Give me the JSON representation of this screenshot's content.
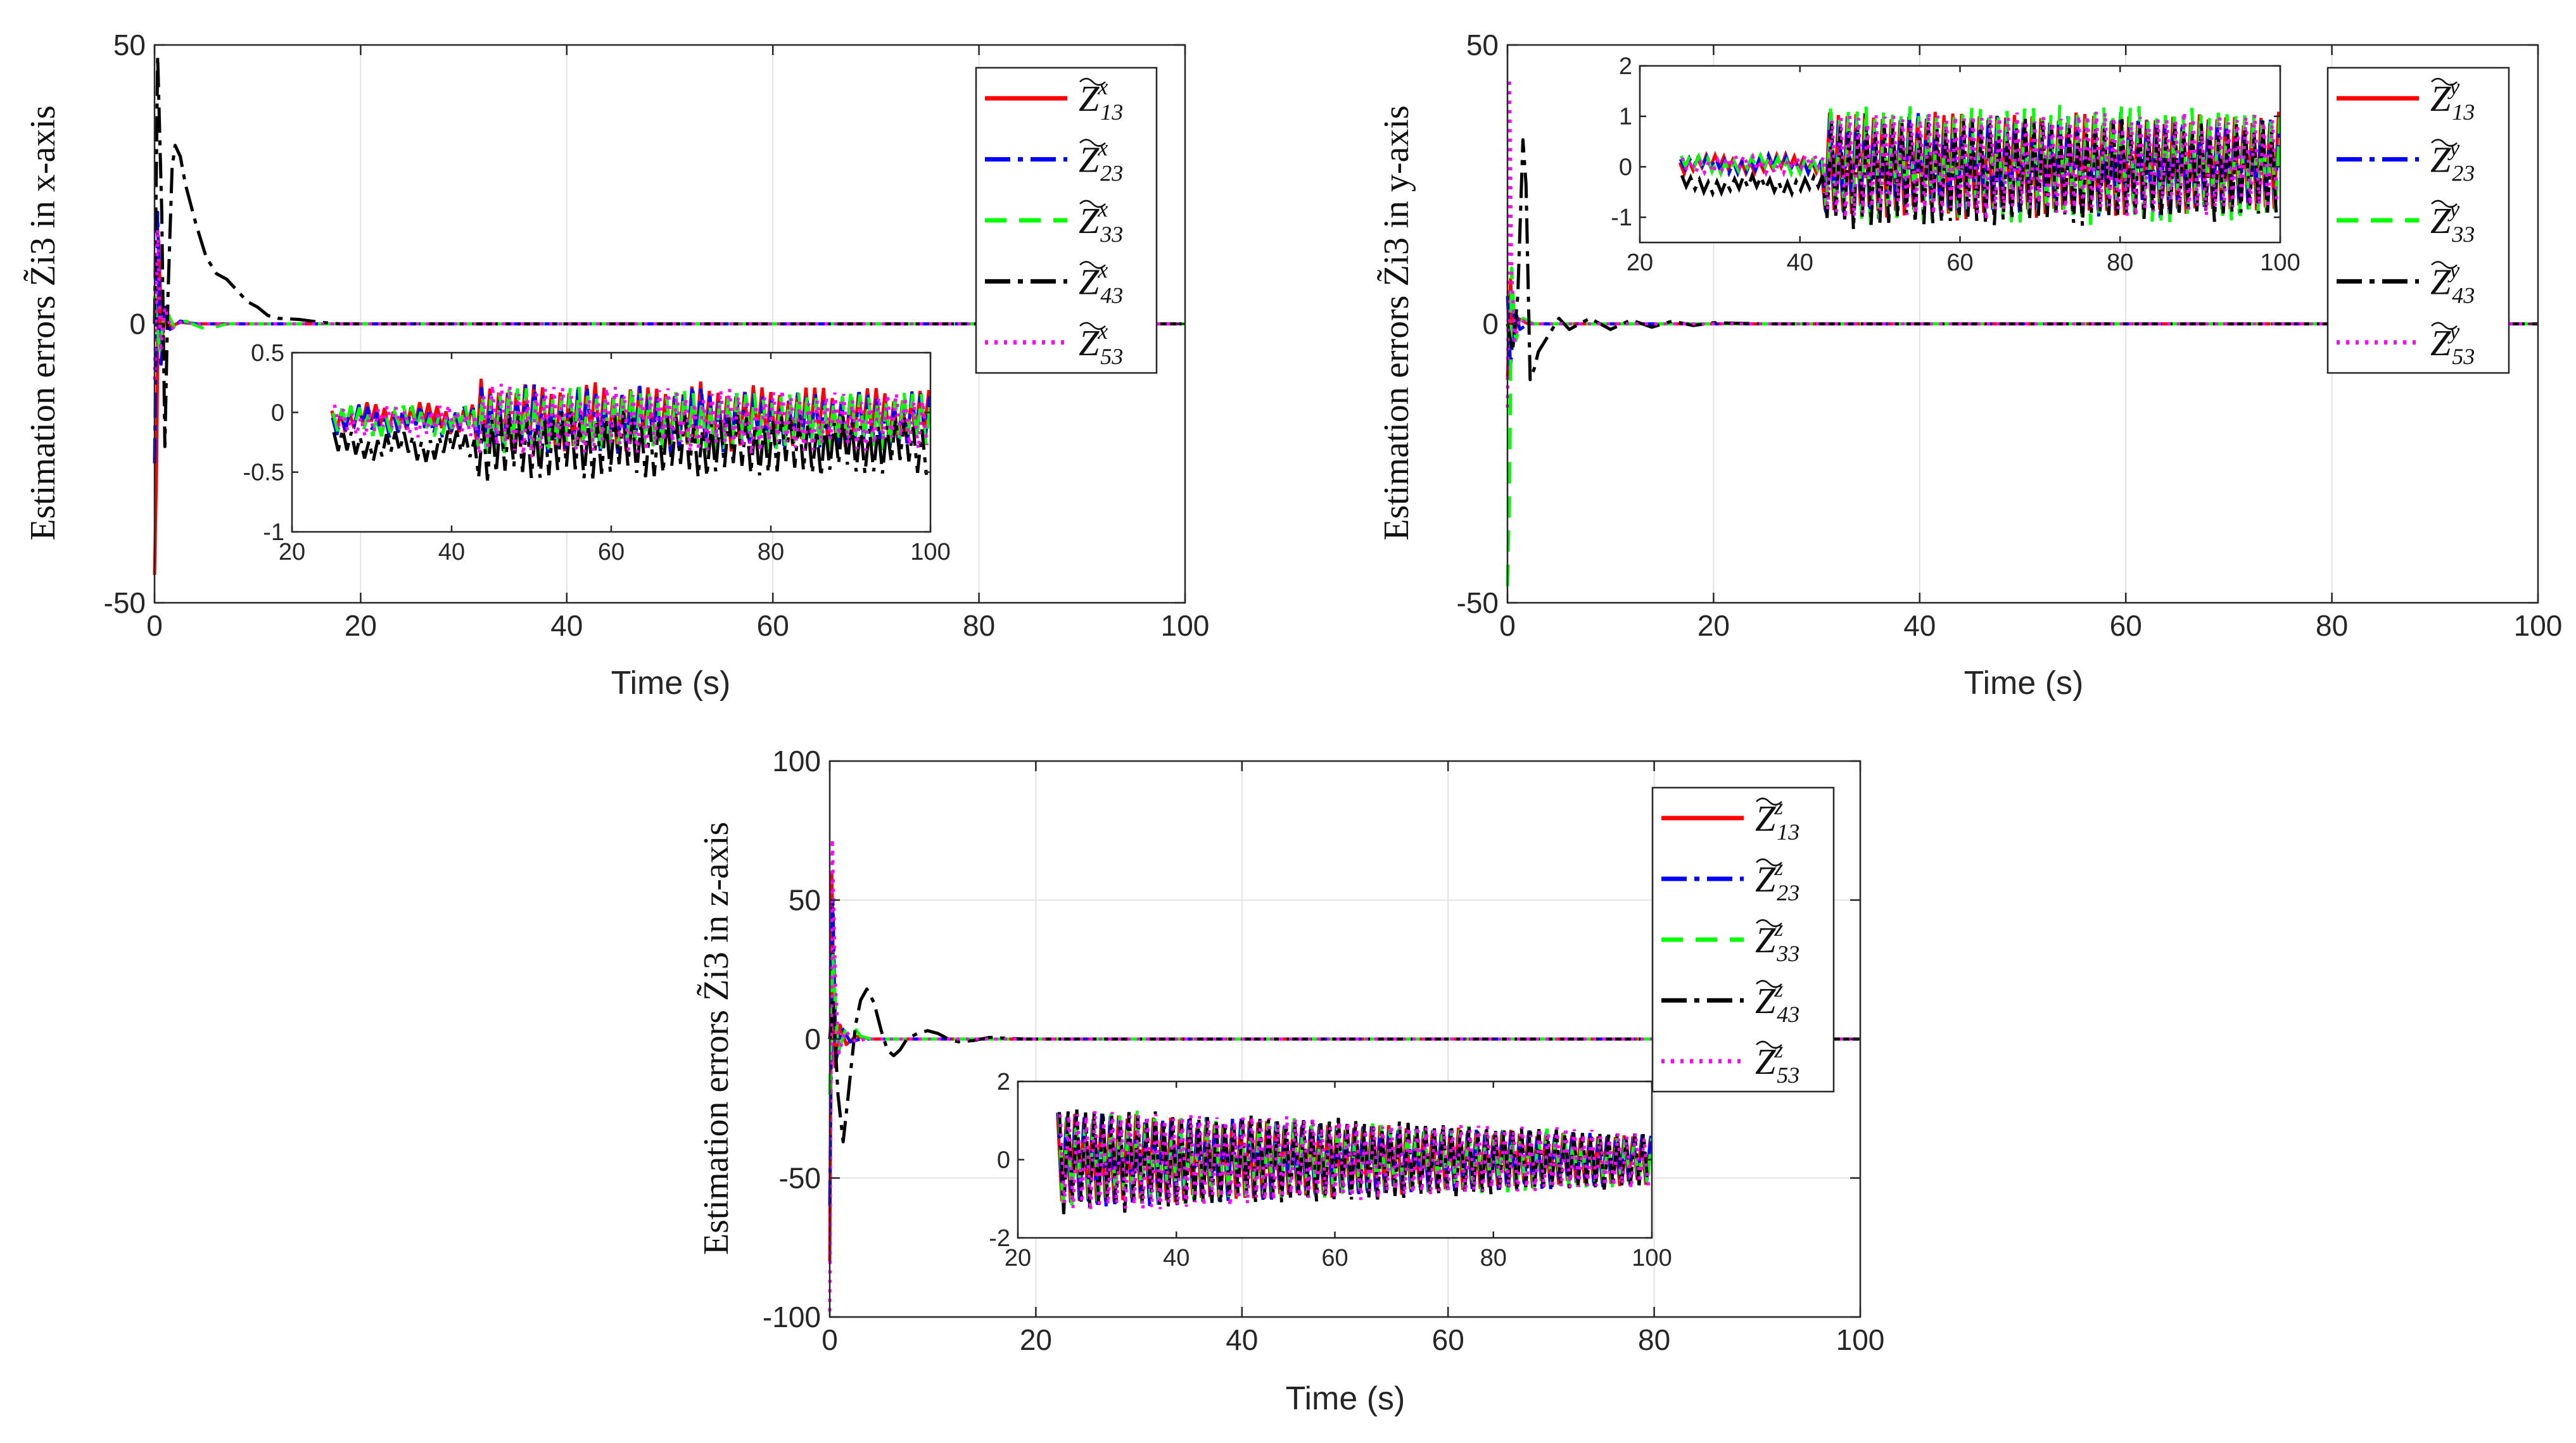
{
  "chart_data": [
    {
      "id": "x",
      "type": "line",
      "xlabel": "Time (s)",
      "ylabel": "Estimation errors Z̃i3 in x-axis",
      "axis_letter": "x",
      "xlim": [
        0,
        100
      ],
      "ylim": [
        -50,
        50
      ],
      "xticks": [
        0,
        20,
        40,
        60,
        80,
        100
      ],
      "yticks": [
        -50,
        0,
        50
      ],
      "grid": true,
      "legend": {
        "placement": "top-right",
        "entries": [
          "Z̃13^x",
          "Z̃23^x",
          "Z̃33^x",
          "Z̃43^x",
          "Z̃53^x"
        ]
      },
      "series": [
        {
          "name": "Z̃13^x",
          "color": "#ff0000",
          "dash": "solid",
          "points": [
            [
              0,
              -45
            ],
            [
              0.2,
              -25
            ],
            [
              0.4,
              15
            ],
            [
              0.7,
              -3
            ],
            [
              1,
              1
            ],
            [
              1.5,
              -0.5
            ],
            [
              2.5,
              0.3
            ],
            [
              4,
              0
            ],
            [
              20,
              0
            ],
            [
              100,
              0
            ]
          ]
        },
        {
          "name": "Z̃23^x",
          "color": "#0000ff",
          "dash": "dashdot",
          "points": [
            [
              0,
              -25
            ],
            [
              0.3,
              20
            ],
            [
              0.6,
              -8
            ],
            [
              1,
              3
            ],
            [
              1.5,
              -1
            ],
            [
              2.5,
              0.5
            ],
            [
              4,
              0
            ],
            [
              20,
              0
            ],
            [
              100,
              0
            ]
          ]
        },
        {
          "name": "Z̃33^x",
          "color": "#00ff00",
          "dash": "dash",
          "points": [
            [
              0,
              5
            ],
            [
              0.5,
              -5
            ],
            [
              1,
              3
            ],
            [
              2,
              -1
            ],
            [
              3,
              0.5
            ],
            [
              5,
              -1
            ],
            [
              7,
              0
            ],
            [
              20,
              0
            ],
            [
              100,
              0
            ]
          ]
        },
        {
          "name": "Z̃43^x",
          "color": "#000000",
          "dash": "dashdot",
          "points": [
            [
              0,
              0
            ],
            [
              0.3,
              48
            ],
            [
              0.7,
              20
            ],
            [
              1,
              -22
            ],
            [
              1.3,
              5
            ],
            [
              1.7,
              28
            ],
            [
              2,
              32
            ],
            [
              2.5,
              30
            ],
            [
              3,
              25
            ],
            [
              4,
              18
            ],
            [
              5,
              12
            ],
            [
              6,
              9
            ],
            [
              7,
              8
            ],
            [
              8,
              6
            ],
            [
              9,
              4
            ],
            [
              10,
              3
            ],
            [
              11,
              1.5
            ],
            [
              12,
              1
            ],
            [
              14,
              0.8
            ],
            [
              16,
              0.3
            ],
            [
              18,
              0
            ],
            [
              100,
              0
            ]
          ]
        },
        {
          "name": "Z̃53^x",
          "color": "#ff00ff",
          "dash": "dot",
          "points": [
            [
              0,
              -10
            ],
            [
              0.3,
              17
            ],
            [
              0.6,
              -5
            ],
            [
              1,
              3
            ],
            [
              1.6,
              -1
            ],
            [
              2.5,
              0.3
            ],
            [
              4,
              0
            ],
            [
              20,
              0
            ],
            [
              100,
              0
            ]
          ]
        }
      ],
      "inset": {
        "xlim": [
          20,
          100
        ],
        "ylim": [
          -1,
          0.5
        ],
        "xticks": [
          20,
          40,
          60,
          80,
          100
        ],
        "yticks": [
          -1,
          -0.5,
          0,
          0.5
        ]
      }
    },
    {
      "id": "y",
      "type": "line",
      "xlabel": "Time (s)",
      "ylabel": "Estimation errors Z̃i3 in y-axis",
      "axis_letter": "y",
      "xlim": [
        0,
        100
      ],
      "ylim": [
        -50,
        50
      ],
      "xticks": [
        0,
        20,
        40,
        60,
        80,
        100
      ],
      "yticks": [
        -50,
        0,
        50
      ],
      "grid": true,
      "legend": {
        "placement": "top-right",
        "entries": [
          "Z̃13^y",
          "Z̃23^y",
          "Z̃33^y",
          "Z̃43^y",
          "Z̃53^y"
        ]
      },
      "series": [
        {
          "name": "Z̃13^y",
          "color": "#ff0000",
          "dash": "solid",
          "points": [
            [
              0,
              -10
            ],
            [
              0.3,
              8
            ],
            [
              0.6,
              -3
            ],
            [
              1,
              1
            ],
            [
              2,
              0
            ],
            [
              100,
              0
            ]
          ]
        },
        {
          "name": "Z̃23^y",
          "color": "#0000ff",
          "dash": "dashdot",
          "points": [
            [
              0,
              5
            ],
            [
              0.3,
              -8
            ],
            [
              0.7,
              3
            ],
            [
              1.2,
              -1
            ],
            [
              2,
              0
            ],
            [
              100,
              0
            ]
          ]
        },
        {
          "name": "Z̃33^y",
          "color": "#00ff00",
          "dash": "dash",
          "points": [
            [
              0,
              -47
            ],
            [
              0.2,
              -30
            ],
            [
              0.4,
              10
            ],
            [
              0.8,
              -3
            ],
            [
              1.5,
              1
            ],
            [
              2.5,
              0
            ],
            [
              100,
              0
            ]
          ]
        },
        {
          "name": "Z̃43^y",
          "color": "#000000",
          "dash": "dashdot",
          "points": [
            [
              0,
              0
            ],
            [
              0.5,
              -5
            ],
            [
              1,
              5
            ],
            [
              1.5,
              33
            ],
            [
              1.8,
              25
            ],
            [
              2.2,
              -10
            ],
            [
              2.6,
              -8
            ],
            [
              3,
              -5
            ],
            [
              4,
              -2
            ],
            [
              5,
              1
            ],
            [
              6,
              -1
            ],
            [
              8,
              1
            ],
            [
              10,
              -1
            ],
            [
              12,
              0.7
            ],
            [
              14,
              -0.6
            ],
            [
              16,
              0.5
            ],
            [
              18,
              -0.3
            ],
            [
              20,
              0.2
            ],
            [
              25,
              0
            ],
            [
              100,
              0
            ]
          ]
        },
        {
          "name": "Z̃53^y",
          "color": "#ff00ff",
          "dash": "dot",
          "points": [
            [
              0,
              -15
            ],
            [
              0.2,
              44
            ],
            [
              0.4,
              10
            ],
            [
              0.7,
              -3
            ],
            [
              1.2,
              1
            ],
            [
              2,
              0
            ],
            [
              100,
              0
            ]
          ]
        }
      ],
      "inset": {
        "xlim": [
          20,
          100
        ],
        "ylim": [
          -1.5,
          2
        ],
        "xticks": [
          20,
          40,
          60,
          80,
          100
        ],
        "yticks": [
          -1,
          0,
          1,
          2
        ]
      }
    },
    {
      "id": "z",
      "type": "line",
      "xlabel": "Time (s)",
      "ylabel": "Estimation errors Z̃i3 in z-axis",
      "axis_letter": "z",
      "xlim": [
        0,
        100
      ],
      "ylim": [
        -100,
        100
      ],
      "xticks": [
        0,
        20,
        40,
        60,
        80,
        100
      ],
      "yticks": [
        -100,
        -50,
        0,
        50,
        100
      ],
      "grid": true,
      "legend": {
        "placement": "top-right",
        "entries": [
          "Z̃13^z",
          "Z̃23^z",
          "Z̃33^z",
          "Z̃43^z",
          "Z̃53^z"
        ]
      },
      "series": [
        {
          "name": "Z̃13^z",
          "color": "#ff0000",
          "dash": "solid",
          "points": [
            [
              0,
              -80
            ],
            [
              0.2,
              60
            ],
            [
              0.5,
              -10
            ],
            [
              1,
              5
            ],
            [
              1.6,
              -2
            ],
            [
              2.5,
              1
            ],
            [
              4,
              0
            ],
            [
              100,
              0
            ]
          ]
        },
        {
          "name": "Z̃23^z",
          "color": "#0000ff",
          "dash": "dashdot",
          "points": [
            [
              0,
              -60
            ],
            [
              0.3,
              50
            ],
            [
              0.6,
              -8
            ],
            [
              1.2,
              4
            ],
            [
              2,
              -1
            ],
            [
              3,
              0
            ],
            [
              100,
              0
            ]
          ]
        },
        {
          "name": "Z̃33^z",
          "color": "#00ff00",
          "dash": "dash",
          "points": [
            [
              0,
              -20
            ],
            [
              0.3,
              30
            ],
            [
              0.8,
              -5
            ],
            [
              1.5,
              3
            ],
            [
              2.2,
              5
            ],
            [
              3,
              1
            ],
            [
              4,
              0
            ],
            [
              100,
              0
            ]
          ]
        },
        {
          "name": "Z̃43^z",
          "color": "#000000",
          "dash": "dashdot",
          "points": [
            [
              0,
              0
            ],
            [
              0.3,
              15
            ],
            [
              0.8,
              -20
            ],
            [
              1.3,
              -37
            ],
            [
              1.8,
              -20
            ],
            [
              2.5,
              5
            ],
            [
              3,
              14
            ],
            [
              3.6,
              18
            ],
            [
              4.3,
              13
            ],
            [
              5,
              3
            ],
            [
              5.6,
              -4
            ],
            [
              6.2,
              -6
            ],
            [
              6.8,
              -4
            ],
            [
              7.5,
              0
            ],
            [
              8.5,
              2
            ],
            [
              9.5,
              3
            ],
            [
              10.5,
              2
            ],
            [
              11.5,
              0
            ],
            [
              12.5,
              -1
            ],
            [
              14,
              -0.5
            ],
            [
              15.5,
              0.6
            ],
            [
              17,
              0.3
            ],
            [
              19,
              0
            ],
            [
              100,
              0
            ]
          ]
        },
        {
          "name": "Z̃53^z",
          "color": "#ff00ff",
          "dash": "dot",
          "points": [
            [
              0,
              -98
            ],
            [
              0.25,
              72
            ],
            [
              0.55,
              20
            ],
            [
              0.9,
              -5
            ],
            [
              1.5,
              3
            ],
            [
              2.5,
              -1
            ],
            [
              3.5,
              0
            ],
            [
              100,
              0
            ]
          ]
        }
      ],
      "inset": {
        "xlim": [
          20,
          100
        ],
        "ylim": [
          -2,
          2
        ],
        "xticks": [
          20,
          40,
          60,
          80,
          100
        ],
        "yticks": [
          -2,
          0,
          2
        ]
      }
    }
  ]
}
